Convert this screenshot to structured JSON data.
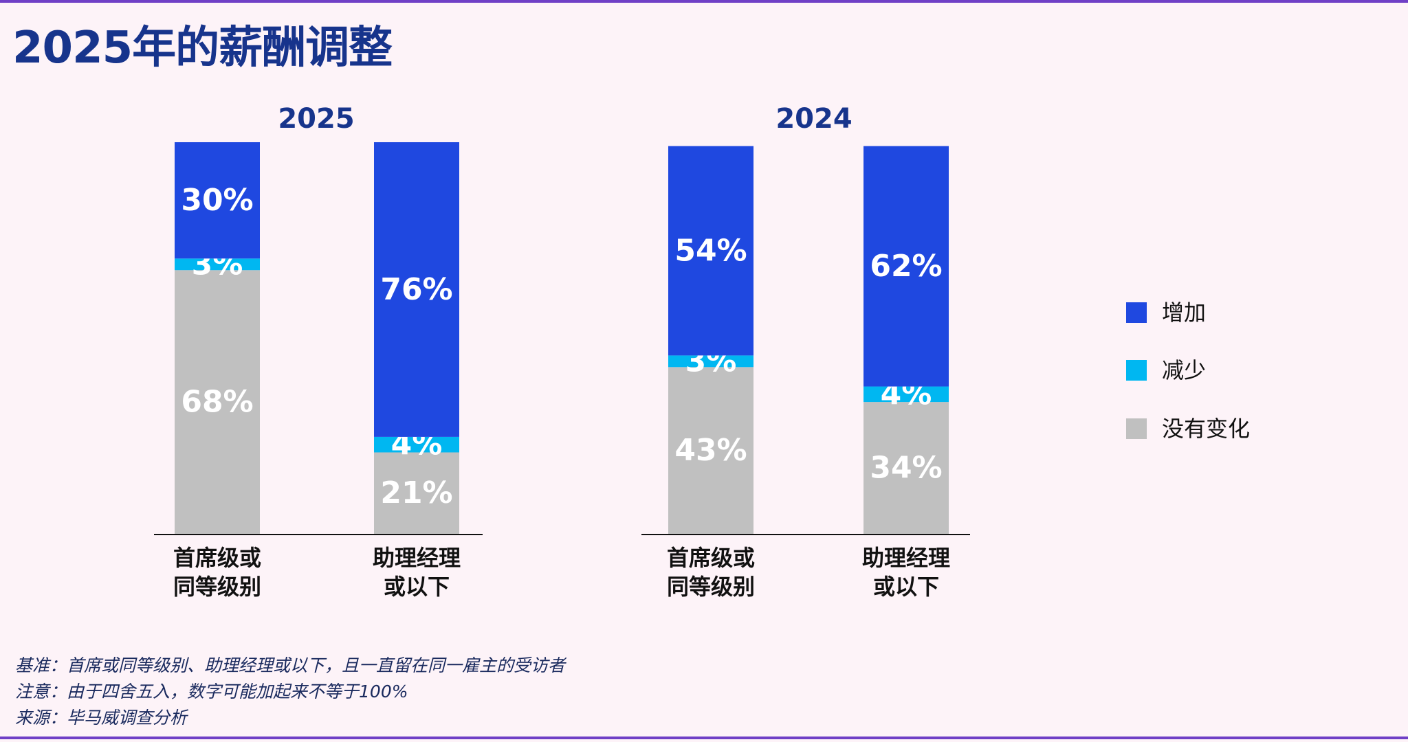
{
  "title": "2025年的薪酬调整",
  "colors": {
    "increase": "#1f48e0",
    "decrease": "#00b7f1",
    "no_change": "#c0c0c0",
    "title": "#17348c",
    "axis": "#111111",
    "frame": "#6f3fc6"
  },
  "chart_data": {
    "type": "bar",
    "stacked": true,
    "title": "2025年的薪酬调整",
    "ylim": [
      0,
      101
    ],
    "legend_position": "right",
    "groups": [
      {
        "title": "2025",
        "categories": [
          "首席级或\n同等级别",
          "助理经理\n或以下"
        ],
        "series": [
          {
            "name": "没有变化",
            "values": [
              68,
              21
            ],
            "labels": [
              "68%",
              "21%"
            ]
          },
          {
            "name": "减少",
            "values": [
              3,
              4
            ],
            "labels": [
              "3%",
              "4%"
            ]
          },
          {
            "name": "增加",
            "values": [
              30,
              76
            ],
            "labels": [
              "30%",
              "76%"
            ]
          }
        ]
      },
      {
        "title": "2024",
        "categories": [
          "首席级或\n同等级别",
          "助理经理\n或以下"
        ],
        "series": [
          {
            "name": "没有变化",
            "values": [
              43,
              34
            ],
            "labels": [
              "43%",
              "34%"
            ]
          },
          {
            "name": "减少",
            "values": [
              3,
              4
            ],
            "labels": [
              "3%",
              "4%"
            ]
          },
          {
            "name": "增加",
            "values": [
              54,
              62
            ],
            "labels": [
              "54%",
              "62%"
            ]
          }
        ]
      }
    ],
    "legend": [
      {
        "name": "增加",
        "color_key": "increase"
      },
      {
        "name": "减少",
        "color_key": "decrease"
      },
      {
        "name": "没有变化",
        "color_key": "no_change"
      }
    ]
  },
  "footnotes": {
    "basis": "基准：首席或同等级别、助理经理或以下，且一直留在同一雇主的受访者",
    "note": "注意：由于四舍五入，数字可能加起来不等于100%",
    "source": "来源：毕马威调查分析"
  }
}
